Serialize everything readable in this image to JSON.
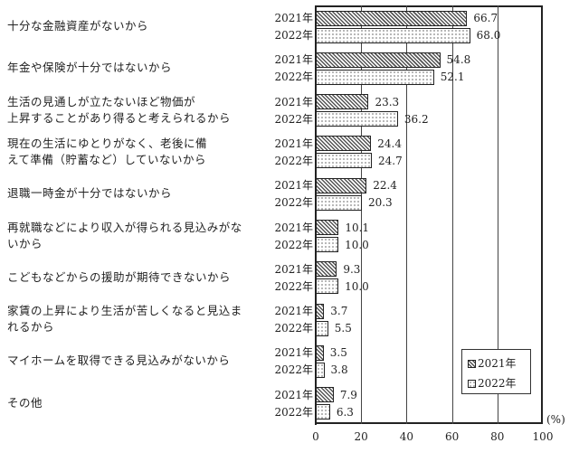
{
  "chart_data": {
    "type": "bar",
    "orientation": "horizontal",
    "categories": [
      "十分な金融資産がないから",
      "年金や保険が十分ではないから",
      "生活の見通しが立たないほど物価が上昇することがあり得ると考えられるから",
      "現在の生活にゆとりがなく、老後に備えて準備（貯蓄など）していないから",
      "退職一時金が十分ではないから",
      "再就職などにより収入が得られる見込みがないから",
      "こどもなどからの援助が期待できないから",
      "家賃の上昇により生活が苦しくなると見込まれるから",
      "マイホームを取得できる見込みがないから",
      "その他"
    ],
    "category_lines": [
      [
        "十分な金融資産がないから"
      ],
      [
        "年金や保険が十分ではないから"
      ],
      [
        "生活の見通しが立たないほど物価が",
        "上昇することがあり得ると考えられるから"
      ],
      [
        "現在の生活にゆとりがなく、老後に備",
        "えて準備（貯蓄など）していないから"
      ],
      [
        "退職一時金が十分ではないから"
      ],
      [
        "再就職などにより収入が得られる見込みがな",
        "いから"
      ],
      [
        "こどもなどからの援助が期待できないから"
      ],
      [
        "家賃の上昇により生活が苦しくなると見込ま",
        "れるから"
      ],
      [
        "マイホームを取得できる見込みがないから"
      ],
      [
        "その他"
      ]
    ],
    "series": [
      {
        "name": "2021年",
        "pattern": "hatch",
        "values": [
          66.7,
          54.8,
          23.3,
          24.4,
          22.4,
          10.1,
          9.3,
          3.7,
          3.5,
          7.9
        ]
      },
      {
        "name": "2022年",
        "pattern": "dots",
        "values": [
          68.0,
          52.1,
          36.2,
          24.7,
          20.3,
          10.0,
          10.0,
          5.5,
          3.8,
          6.3
        ]
      }
    ],
    "value_labels": {
      "2021年": [
        "66.7",
        "54.8",
        "23.3",
        "24.4",
        "22.4",
        "10.1",
        "9.3",
        "3.7",
        "3.5",
        "7.9"
      ],
      "2022年": [
        "68.0",
        "52.1",
        "36.2",
        "24.7",
        "20.3",
        "10.0",
        "10.0",
        "5.5",
        "3.8",
        "6.3"
      ]
    },
    "title": "",
    "xlabel": "(%)",
    "ylabel": "",
    "xlim": [
      0,
      100
    ],
    "xticks": [
      "0",
      "20",
      "40",
      "60",
      "80",
      "100"
    ],
    "grid": "vertical",
    "legend": {
      "position": "lower right inside",
      "entries": [
        "2021年",
        "2022年"
      ]
    }
  }
}
